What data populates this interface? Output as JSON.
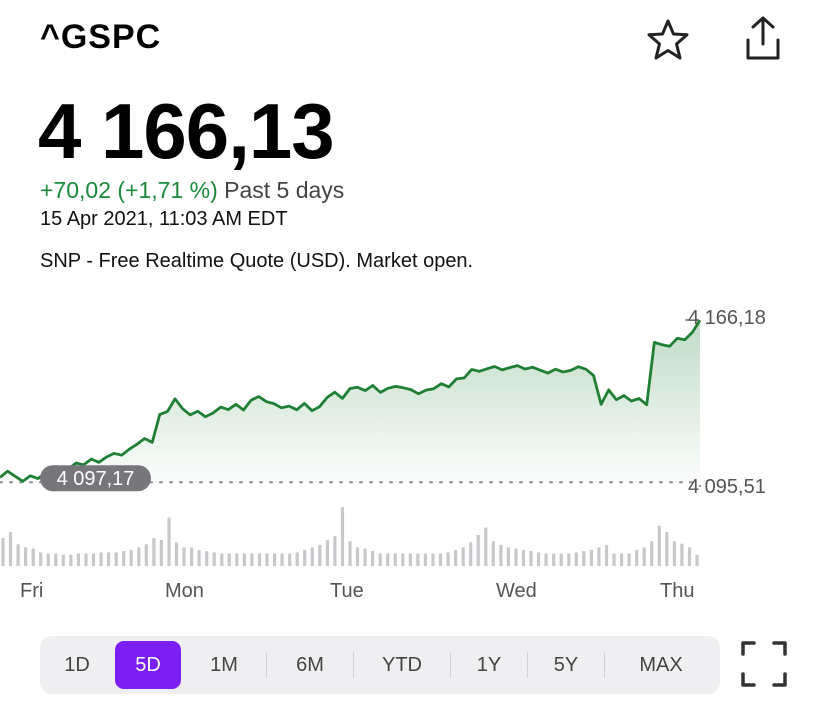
{
  "header": {
    "symbol": "^GSPC",
    "icons": {
      "favorite": "star-icon",
      "share": "share-icon"
    }
  },
  "quote": {
    "price": "4 166,13",
    "change": "+70,02 (+1,71 %)",
    "period": "Past 5 days",
    "timestamp": "15 Apr 2021, 11:03 AM EDT",
    "note": "SNP - Free Realtime Quote (USD). Market open."
  },
  "colors": {
    "positive": "#1a8a3a",
    "line": "#1f7f35",
    "accent": "#7b1ff2",
    "volume": "#c7c7cc"
  },
  "chart_data": {
    "type": "line",
    "x_labels": [
      "Fri",
      "Mon",
      "Tue",
      "Wed",
      "Thu"
    ],
    "high_label": "4 166,18",
    "low_label": "4 095,51",
    "previous_close_label": "4 097,17",
    "previous_close": 4097.17,
    "ylim": [
      4095.51,
      4166.18
    ],
    "values": [
      4097.5,
      4100.2,
      4098.0,
      4095.8,
      4098.2,
      4097.0,
      4099.6,
      4100.1,
      4102.0,
      4101.2,
      4103.8,
      4103.0,
      4105.5,
      4104.1,
      4106.4,
      4108.0,
      4107.2,
      4109.8,
      4112.0,
      4114.5,
      4112.8,
      4125.0,
      4126.2,
      4131.8,
      4127.5,
      4124.8,
      4126.4,
      4124.0,
      4125.6,
      4128.2,
      4127.1,
      4129.4,
      4126.9,
      4131.2,
      4132.8,
      4130.6,
      4129.7,
      4127.9,
      4128.6,
      4127.0,
      4129.8,
      4126.6,
      4128.4,
      4132.4,
      4134.7,
      4132.0,
      4136.3,
      4136.8,
      4135.4,
      4137.6,
      4134.6,
      4136.4,
      4137.2,
      4136.6,
      4135.8,
      4134.0,
      4135.6,
      4136.2,
      4138.4,
      4137.0,
      4140.5,
      4140.9,
      4144.6,
      4143.8,
      4144.9,
      4145.9,
      4144.4,
      4145.4,
      4146.3,
      4144.8,
      4145.6,
      4144.3,
      4143.0,
      4144.7,
      4143.5,
      4144.2,
      4145.8,
      4144.7,
      4142.0,
      4129.4,
      4135.7,
      4131.4,
      4133.2,
      4130.8,
      4132.0,
      4129.2,
      4156.4,
      4155.4,
      4154.7,
      4158.2,
      4157.6,
      4160.8,
      4166.1
    ],
    "volume": [
      0.45,
      0.55,
      0.35,
      0.3,
      0.28,
      0.22,
      0.2,
      0.2,
      0.18,
      0.18,
      0.2,
      0.2,
      0.2,
      0.22,
      0.22,
      0.22,
      0.24,
      0.26,
      0.3,
      0.35,
      0.45,
      0.42,
      0.78,
      0.38,
      0.3,
      0.3,
      0.26,
      0.24,
      0.22,
      0.2,
      0.2,
      0.2,
      0.2,
      0.2,
      0.2,
      0.2,
      0.2,
      0.2,
      0.2,
      0.22,
      0.26,
      0.3,
      0.34,
      0.42,
      0.48,
      0.95,
      0.4,
      0.3,
      0.28,
      0.24,
      0.2,
      0.2,
      0.2,
      0.2,
      0.2,
      0.2,
      0.2,
      0.2,
      0.2,
      0.22,
      0.26,
      0.3,
      0.38,
      0.5,
      0.62,
      0.4,
      0.34,
      0.3,
      0.28,
      0.26,
      0.24,
      0.22,
      0.2,
      0.2,
      0.2,
      0.2,
      0.22,
      0.24,
      0.26,
      0.3,
      0.34,
      0.2,
      0.2,
      0.2,
      0.26,
      0.3,
      0.4,
      0.65,
      0.55,
      0.4,
      0.36,
      0.3,
      0.18
    ]
  },
  "range_selector": {
    "options": [
      "1D",
      "5D",
      "1M",
      "6M",
      "YTD",
      "1Y",
      "5Y",
      "MAX"
    ],
    "selected": "5D"
  },
  "fullscreen_icon": "fullscreen-icon"
}
